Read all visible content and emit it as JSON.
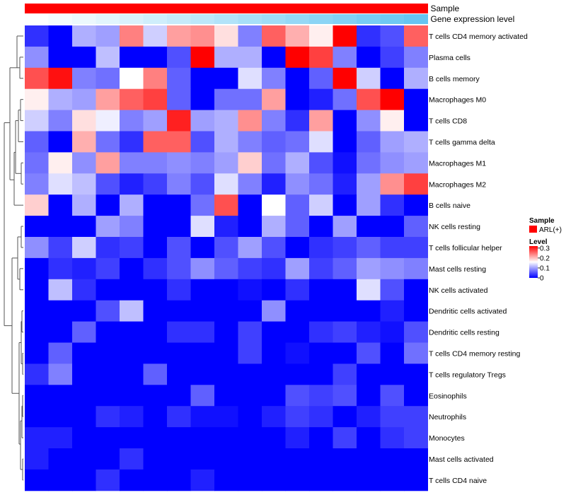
{
  "chart_data": {
    "type": "heatmap",
    "columns": 17,
    "rows": [
      "T cells CD4 memory activated",
      "Plasma cells",
      "B cells memory",
      "Macrophages M0",
      "T cells CD8",
      "T cells gamma delta",
      "Macrophages M1",
      "Macrophages M2",
      "B cells naive",
      "NK cells resting",
      "T cells follicular helper",
      "Mast cells resting",
      "NK cells activated",
      "Dendritic cells activated",
      "Dendritic cells resting",
      "T cells CD4 memory resting",
      "T cells regulatory  Tregs",
      "Eosinophils",
      "Neutrophils",
      "Monocytes",
      "Mast cells activated",
      "T cells CD4 naive"
    ],
    "values": [
      [
        0.03,
        0.0,
        0.11,
        0.1,
        0.24,
        0.13,
        0.22,
        0.23,
        0.18,
        0.08,
        0.26,
        0.21,
        0.17,
        0.32,
        0.03,
        0.05,
        0.26
      ],
      [
        0.09,
        0.0,
        0.0,
        0.12,
        0.0,
        0.0,
        0.05,
        0.32,
        0.11,
        0.11,
        0.0,
        0.32,
        0.28,
        0.08,
        0.0,
        0.04,
        0.08
      ],
      [
        0.27,
        0.31,
        0.08,
        0.07,
        0.16,
        0.24,
        0.06,
        0.0,
        0.0,
        0.14,
        0.08,
        0.0,
        0.06,
        0.32,
        0.13,
        0.0,
        0.11
      ],
      [
        0.17,
        0.11,
        0.1,
        0.22,
        0.26,
        0.28,
        0.06,
        0.0,
        0.07,
        0.07,
        0.22,
        0.0,
        0.02,
        0.07,
        0.27,
        0.32,
        0.0
      ],
      [
        0.13,
        0.08,
        0.18,
        0.15,
        0.08,
        0.1,
        0.3,
        0.1,
        0.11,
        0.23,
        0.08,
        0.03,
        0.22,
        0.0,
        0.09,
        0.17,
        0.0
      ],
      [
        0.06,
        0.0,
        0.21,
        0.07,
        0.03,
        0.26,
        0.26,
        0.05,
        0.11,
        0.08,
        0.06,
        0.07,
        0.14,
        0.0,
        0.06,
        0.1,
        0.11
      ],
      [
        0.07,
        0.17,
        0.09,
        0.22,
        0.08,
        0.08,
        0.09,
        0.08,
        0.1,
        0.19,
        0.07,
        0.11,
        0.05,
        0.01,
        0.07,
        0.09,
        0.1
      ],
      [
        0.08,
        0.14,
        0.12,
        0.05,
        0.02,
        0.04,
        0.08,
        0.05,
        0.14,
        0.08,
        0.02,
        0.09,
        0.07,
        0.02,
        0.1,
        0.23,
        0.28
      ],
      [
        0.19,
        0.0,
        0.11,
        0.0,
        0.11,
        0.0,
        0.0,
        0.07,
        0.27,
        0.0,
        0.16,
        0.06,
        0.13,
        0.0,
        0.1,
        0.03,
        0.0
      ],
      [
        0.0,
        0.0,
        0.0,
        0.1,
        0.08,
        0.0,
        0.0,
        0.14,
        0.02,
        0.0,
        0.11,
        0.06,
        0.0,
        0.1,
        0.0,
        0.0,
        0.06
      ],
      [
        0.09,
        0.04,
        0.13,
        0.03,
        0.04,
        0.0,
        0.05,
        0.0,
        0.05,
        0.1,
        0.05,
        0.0,
        0.03,
        0.04,
        0.06,
        0.04,
        0.04
      ],
      [
        0.0,
        0.03,
        0.02,
        0.04,
        0.0,
        0.03,
        0.05,
        0.09,
        0.06,
        0.04,
        0.03,
        0.1,
        0.04,
        0.06,
        0.1,
        0.09,
        0.08
      ],
      [
        0.0,
        0.12,
        0.03,
        0.0,
        0.0,
        0.0,
        0.03,
        0.0,
        0.0,
        0.01,
        0.0,
        0.03,
        0.0,
        0.0,
        0.14,
        0.05,
        0.0
      ],
      [
        0.0,
        0.0,
        0.0,
        0.05,
        0.12,
        0.0,
        0.0,
        0.0,
        0.0,
        0.0,
        0.09,
        0.0,
        0.0,
        0.0,
        0.0,
        0.02,
        0.0
      ],
      [
        0.0,
        0.0,
        0.06,
        0.0,
        0.0,
        0.0,
        0.03,
        0.03,
        0.0,
        0.04,
        0.0,
        0.0,
        0.03,
        0.04,
        0.02,
        0.01,
        0.05
      ],
      [
        0.0,
        0.06,
        0.0,
        0.0,
        0.0,
        0.0,
        0.0,
        0.0,
        0.0,
        0.04,
        0.0,
        0.01,
        0.0,
        0.0,
        0.05,
        0.0,
        0.07
      ],
      [
        0.03,
        0.08,
        0.0,
        0.0,
        0.0,
        0.06,
        0.0,
        0.0,
        0.0,
        0.0,
        0.0,
        0.0,
        0.0,
        0.04,
        0.0,
        0.0,
        0.0
      ],
      [
        0.0,
        0.0,
        0.0,
        0.0,
        0.0,
        0.0,
        0.0,
        0.06,
        0.0,
        0.0,
        0.0,
        0.05,
        0.04,
        0.05,
        0.0,
        0.05,
        0.0
      ],
      [
        0.0,
        0.0,
        0.0,
        0.03,
        0.02,
        0.0,
        0.03,
        0.01,
        0.01,
        0.0,
        0.02,
        0.04,
        0.03,
        0.0,
        0.02,
        0.04,
        0.04
      ],
      [
        0.02,
        0.02,
        0.0,
        0.0,
        0.0,
        0.0,
        0.0,
        0.0,
        0.0,
        0.0,
        0.0,
        0.02,
        0.0,
        0.04,
        0.0,
        0.03,
        0.04
      ],
      [
        0.02,
        0.0,
        0.0,
        0.0,
        0.03,
        0.0,
        0.0,
        0.0,
        0.0,
        0.0,
        0.0,
        0.0,
        0.0,
        0.0,
        0.0,
        0.0,
        0.0
      ],
      [
        0.0,
        0.0,
        0.0,
        0.03,
        0.0,
        0.0,
        0.0,
        0.02,
        0.0,
        0.0,
        0.0,
        0.0,
        0.0,
        0.0,
        0.0,
        0.0,
        0.0
      ]
    ],
    "annotations": [
      {
        "name": "Sample",
        "colors": [
          "#ff0000",
          "#ff0000",
          "#ff0000",
          "#ff0000",
          "#ff0000",
          "#ff0000",
          "#ff0000",
          "#ff0000",
          "#ff0000",
          "#ff0000",
          "#ff0000",
          "#ff0000",
          "#ff0000",
          "#ff0000",
          "#ff0000",
          "#ff0000",
          "#ff0000"
        ]
      },
      {
        "name": "Gene expression level",
        "colors": [
          "#fdfeff",
          "#f4fbfe",
          "#ecf8fd",
          "#e2f5fd",
          "#d9f1fc",
          "#cfeefb",
          "#c6eafa",
          "#bce7fa",
          "#b2e3f9",
          "#a8dff8",
          "#9fdcf7",
          "#95d8f6",
          "#8bd4f5",
          "#82d0f5",
          "#78ccf4",
          "#6fc8f3",
          "#66c5f2"
        ]
      }
    ],
    "legend": {
      "sample_title": "Sample",
      "sample_item": "ARL(+)",
      "sample_color": "#ff0000",
      "level_title": "Level",
      "ticks": [
        "0.3",
        "0.2",
        "0.1",
        "0"
      ],
      "tick_values": [
        0.3,
        0.2,
        0.1,
        0
      ],
      "max": 0.32,
      "color_low": "#0000ff",
      "color_mid": "#ffffff",
      "color_high": "#ff0000"
    },
    "dendrogram": "row clustering tree on the left"
  }
}
